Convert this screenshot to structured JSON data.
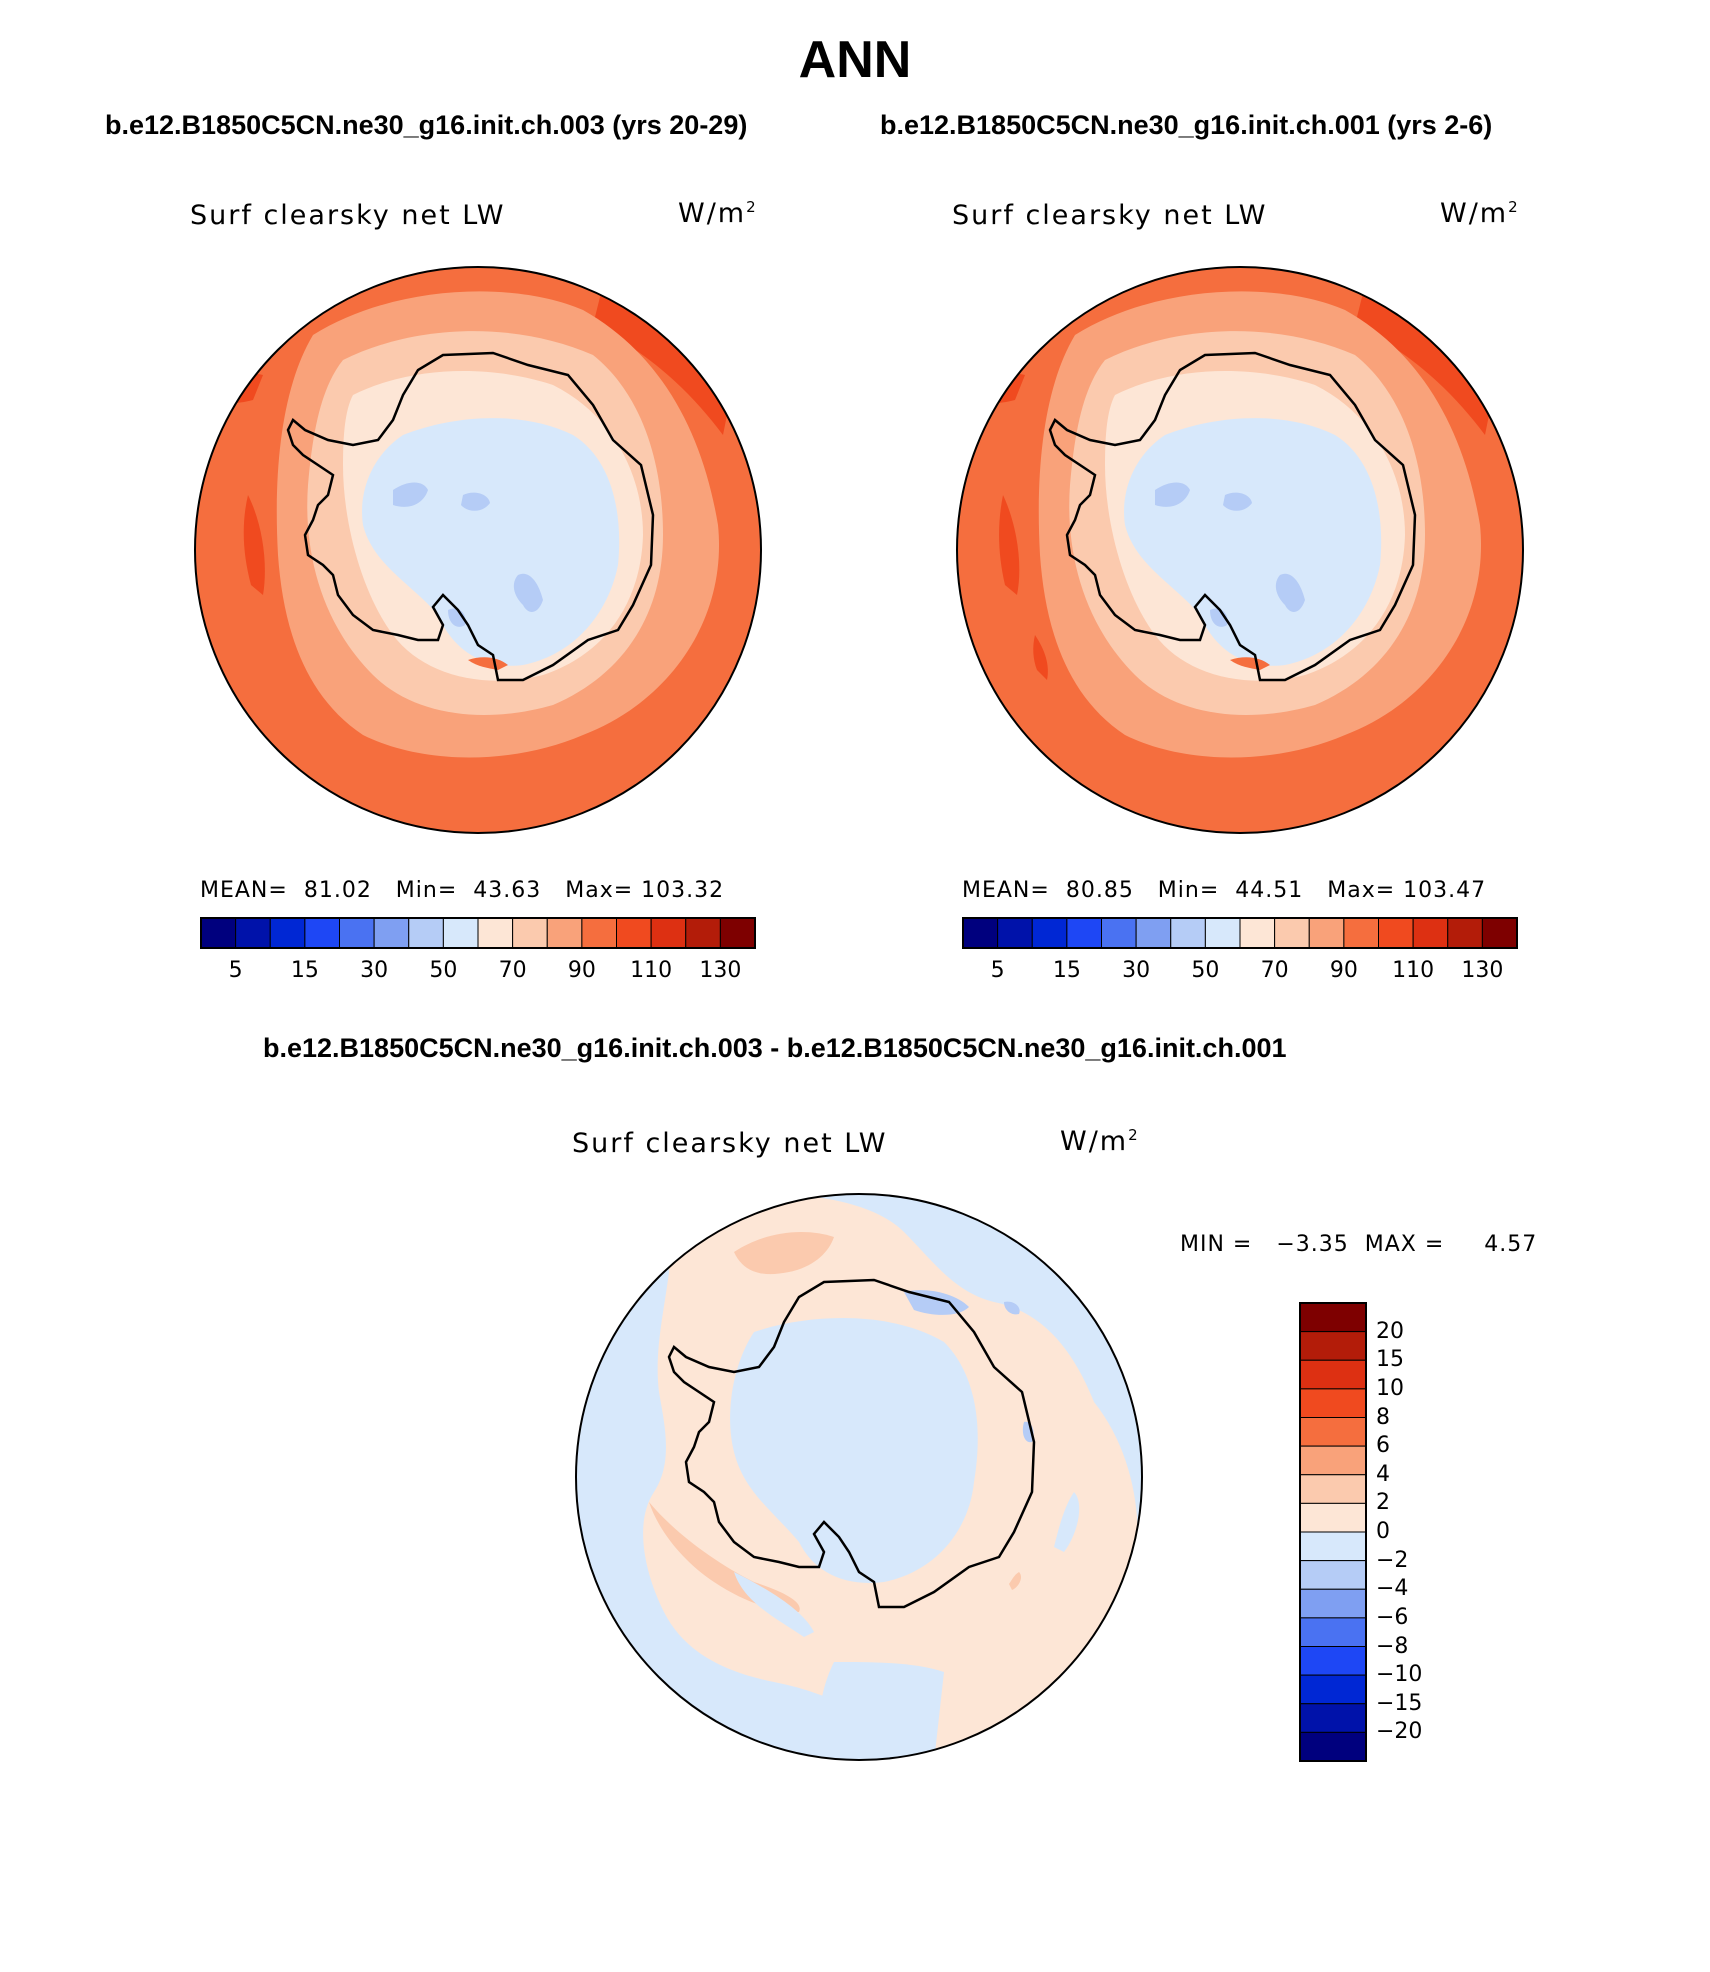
{
  "title": "ANN",
  "case_titles": {
    "left": "b.e12.B1850C5CN.ne30_g16.init.ch.003 (yrs 20-29)",
    "right": "b.e12.B1850C5CN.ne30_g16.init.ch.001 (yrs 2-6)",
    "diff": "b.e12.B1850C5CN.ne30_g16.init.ch.003 - b.e12.B1850C5CN.ne30_g16.init.ch.001"
  },
  "variable_label": "Surf clearsky net LW",
  "units": {
    "base": "W/m",
    "exp": "2"
  },
  "panel_left": {
    "stats": {
      "mean_label": "MEAN=",
      "mean": "81.02",
      "min_label": "Min=",
      "min": "43.63",
      "max_label": "Max=",
      "max": "103.32"
    }
  },
  "panel_right": {
    "stats": {
      "mean_label": "MEAN=",
      "mean": "80.85",
      "min_label": "Min=",
      "min": "44.51",
      "max_label": "Max=",
      "max": "103.47"
    }
  },
  "panel_diff": {
    "minmax_text": "MIN =   −3.35  MAX =     4.57"
  },
  "colorbar_main": {
    "colors": [
      "#00007e",
      "#0012aa",
      "#0027d4",
      "#1e47f5",
      "#4a72f2",
      "#7f9ff2",
      "#b5ccf6",
      "#d7e8fb",
      "#fde6d6",
      "#fbcaae",
      "#f9a27a",
      "#f56e3e",
      "#f04a1f",
      "#dd3012",
      "#b31c09",
      "#7e0000"
    ],
    "tick_labels": [
      "5",
      "15",
      "30",
      "50",
      "70",
      "90",
      "110",
      "130"
    ]
  },
  "colorbar_diff": {
    "colors": [
      "#7e0000",
      "#b31c09",
      "#dd3012",
      "#f04a1f",
      "#f56e3e",
      "#f9a27a",
      "#fbcaae",
      "#fde6d6",
      "#d7e8fb",
      "#b5ccf6",
      "#7f9ff2",
      "#4a72f2",
      "#1e47f5",
      "#0027d4",
      "#0012aa",
      "#00007e"
    ],
    "tick_labels": [
      "20",
      "15",
      "10",
      "8",
      "6",
      "4",
      "2",
      "0",
      "−2",
      "−4",
      "−6",
      "−8",
      "−10",
      "−15",
      "−20"
    ]
  }
}
